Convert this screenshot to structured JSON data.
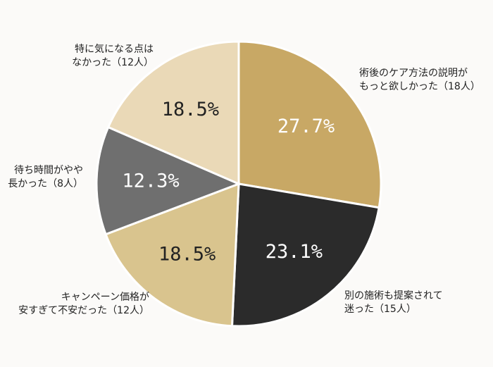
{
  "chart_data": {
    "type": "pie",
    "title": "",
    "start_angle_deg": 0,
    "direction": "clockwise",
    "slices": [
      {
        "label_lines": [
          "術後のケア方法の説明が",
          "もっと欲しかった（18人）"
        ],
        "count": 18,
        "percent_label": "27.7%",
        "value": 27.7,
        "color": "#c8a865",
        "text_color": "#ffffff"
      },
      {
        "label_lines": [
          "別の施術も提案されて",
          "迷った（15人）"
        ],
        "count": 15,
        "percent_label": "23.1%",
        "value": 23.1,
        "color": "#2b2b2b",
        "text_color": "#ffffff"
      },
      {
        "label_lines": [
          "キャンペーン価格が",
          "安すぎて不安だった（12人）"
        ],
        "count": 12,
        "percent_label": "18.5%",
        "value": 18.5,
        "color": "#d9c48e",
        "text_color": "#222222"
      },
      {
        "label_lines": [
          "待ち時間がやや",
          "長かった（8人）"
        ],
        "count": 8,
        "percent_label": "12.3%",
        "value": 12.3,
        "color": "#6f6f6f",
        "text_color": "#ffffff"
      },
      {
        "label_lines": [
          "特に気になる点は",
          "なかった（12人）"
        ],
        "count": 12,
        "percent_label": "18.5%",
        "value": 18.5,
        "color": "#ead9b7",
        "text_color": "#222222"
      }
    ]
  }
}
